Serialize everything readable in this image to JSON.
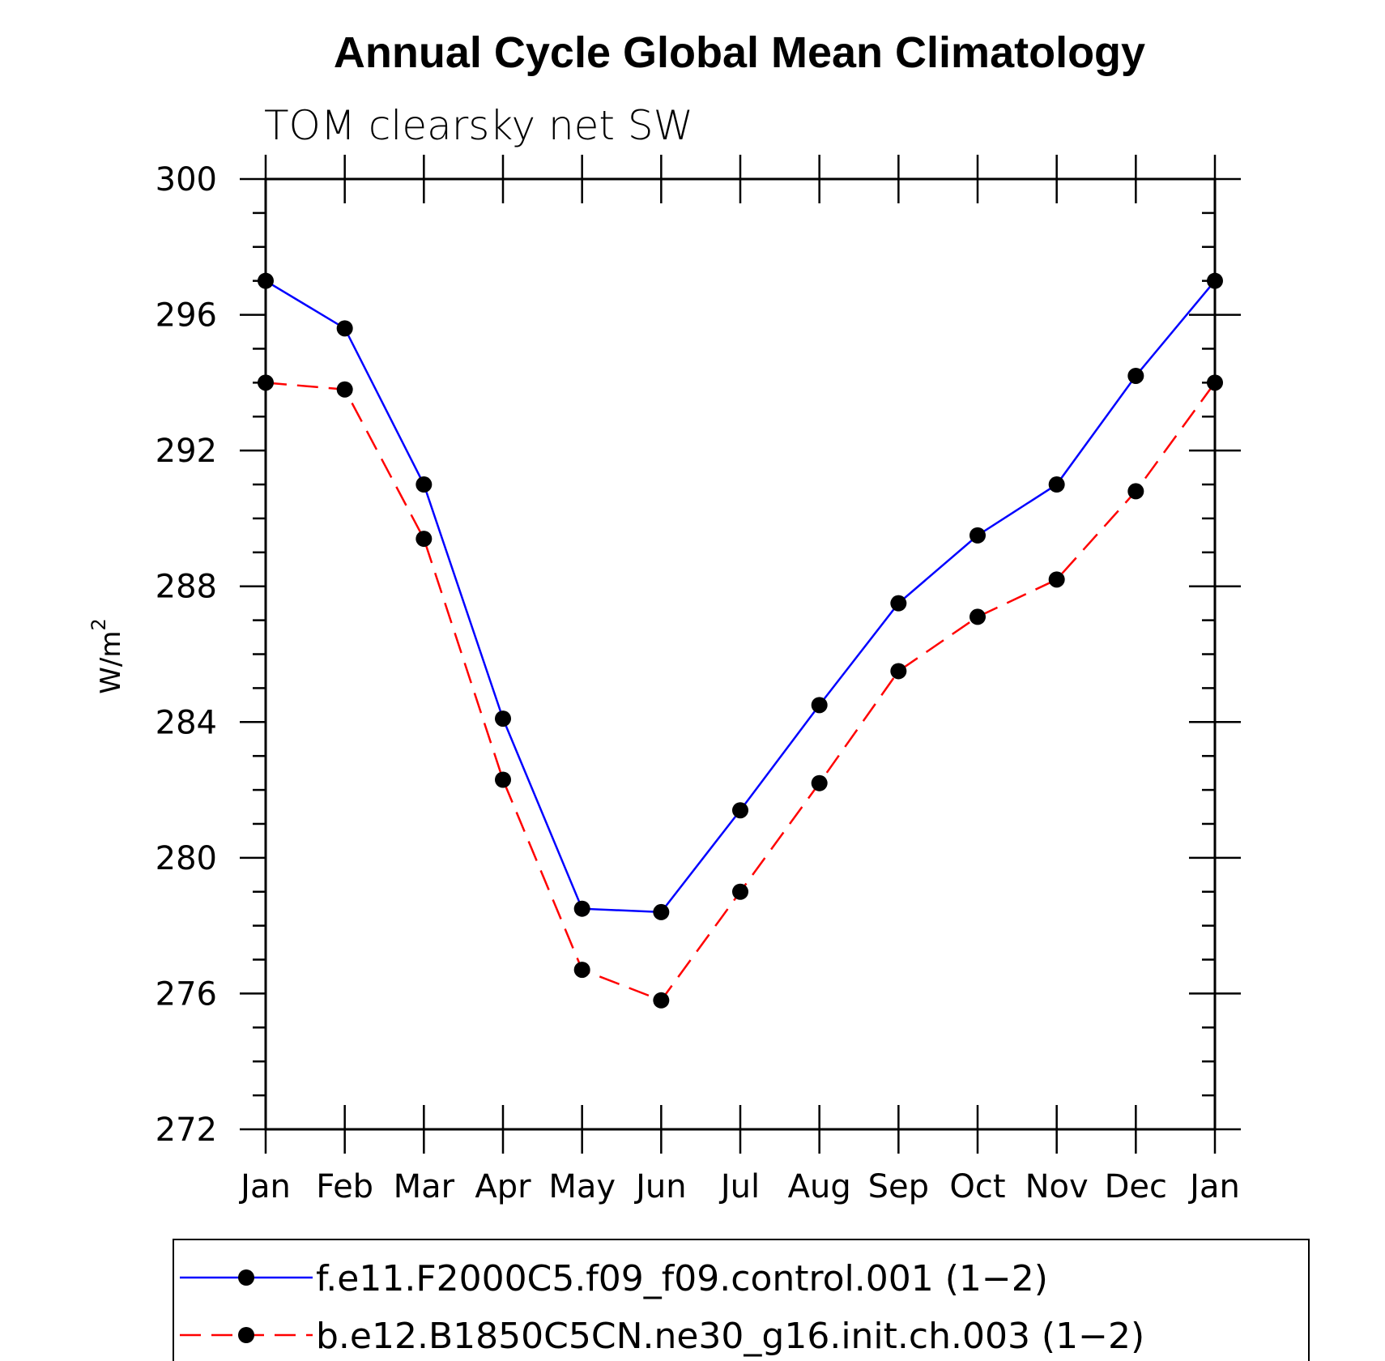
{
  "chart_data": {
    "type": "line",
    "title": "Annual Cycle Global Mean Climatology",
    "subtitle": "TOM clearsky net SW",
    "xlabel": "",
    "ylabel": "W/m",
    "ylabel_superscript": "2",
    "categories": [
      "Jan",
      "Feb",
      "Mar",
      "Apr",
      "May",
      "Jun",
      "Jul",
      "Aug",
      "Sep",
      "Oct",
      "Nov",
      "Dec",
      "Jan"
    ],
    "ylim": [
      272,
      300
    ],
    "yticks": [
      272,
      276,
      280,
      284,
      288,
      292,
      296,
      300
    ],
    "series": [
      {
        "name": "f.e11.F2000C5.f09_f09.control.001 (1−2)",
        "color": "#0000ff",
        "dash": "solid",
        "values": [
          297.0,
          295.6,
          291.0,
          284.1,
          278.5,
          278.4,
          281.4,
          284.5,
          287.5,
          289.5,
          291.0,
          294.2,
          297.0
        ]
      },
      {
        "name": "b.e12.B1850C5CN.ne30_g16.init.ch.003 (1−2)",
        "color": "#ff0000",
        "dash": "dashed",
        "values": [
          294.0,
          293.8,
          289.4,
          282.3,
          276.7,
          275.8,
          279.0,
          282.2,
          285.5,
          287.1,
          288.2,
          290.8,
          294.0
        ]
      }
    ]
  }
}
